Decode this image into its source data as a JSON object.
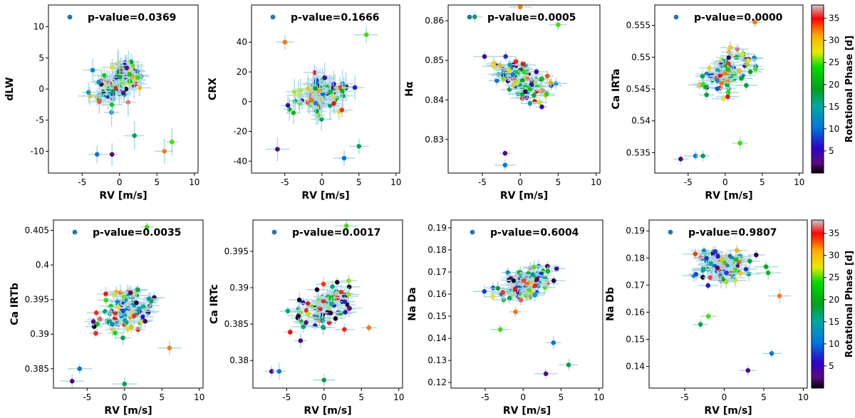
{
  "figure_kind": "scatter_grid",
  "colorbar": {
    "label": "Rotational Phase [d]",
    "ticks": [
      5,
      10,
      15,
      20,
      25,
      30,
      35
    ],
    "range": [
      0,
      38
    ]
  },
  "chart_data": [
    {
      "type": "scatter",
      "id": "dLW",
      "ylabel": "dLW",
      "xlabel": "RV [m/s]",
      "pvalue_text": "p-value=0.0369",
      "xlim": [
        -9.5,
        10.5
      ],
      "ylim": [
        -13.5,
        13.5
      ],
      "xticks": [
        -5,
        0,
        5,
        10
      ],
      "yticks": [
        -10,
        -5,
        0,
        5,
        10
      ],
      "slope": 0.55,
      "intercept": 1.0,
      "noise": 3.6,
      "outliers": [
        [
          -1,
          -10.5
        ],
        [
          -3,
          -10.5
        ],
        [
          2,
          -7.5
        ],
        [
          7,
          -8.5
        ],
        [
          6,
          -10
        ]
      ],
      "n": 95,
      "errx": 1.2,
      "erry": 1.8,
      "seed": 11
    },
    {
      "type": "scatter",
      "id": "CRX",
      "ylabel": "CRX",
      "xlabel": "RV [m/s]",
      "pvalue_text": "p-value=0.1666",
      "xlim": [
        -9.5,
        10.5
      ],
      "ylim": [
        -48,
        65
      ],
      "xticks": [
        -5,
        0,
        5,
        10
      ],
      "yticks": [
        -40,
        -20,
        0,
        20,
        40
      ],
      "slope": 1.0,
      "intercept": 5.0,
      "noise": 15,
      "outliers": [
        [
          -6,
          -32
        ],
        [
          3,
          -38
        ],
        [
          5,
          -30
        ],
        [
          6,
          45
        ],
        [
          -5,
          40
        ]
      ],
      "n": 95,
      "errx": 1.4,
      "erry": 8,
      "seed": 23
    },
    {
      "type": "scatter",
      "id": "Halpha",
      "ylabel": "Hα",
      "xlabel": "RV [m/s]",
      "pvalue_text": "p-value=0.0005",
      "xlim": [
        -9.5,
        10.5
      ],
      "ylim": [
        0.8215,
        0.864
      ],
      "xticks": [
        -5,
        0,
        5,
        10
      ],
      "yticks": [
        0.83,
        0.84,
        0.85,
        0.86
      ],
      "slope": -0.0008,
      "intercept": 0.8455,
      "noise": 0.006,
      "outliers": [
        [
          -2,
          0.8265
        ],
        [
          -2,
          0.8235
        ],
        [
          -6,
          0.861
        ],
        [
          5,
          0.859
        ],
        [
          0,
          0.8635
        ]
      ],
      "n": 95,
      "errx": 1.3,
      "erry": 0.0012,
      "seed": 37
    },
    {
      "type": "scatter",
      "id": "CaIRTa",
      "ylabel": "Ca IRTa",
      "xlabel": "RV [m/s]",
      "pvalue_text": "p-value=0.0000",
      "xlim": [
        -9.5,
        10.5
      ],
      "ylim": [
        0.5318,
        0.5582
      ],
      "xticks": [
        -5,
        0,
        5,
        10
      ],
      "yticks": [
        0.535,
        0.54,
        0.545,
        0.55,
        0.555
      ],
      "slope": 0.0005,
      "intercept": 0.5475,
      "noise": 0.0035,
      "outliers": [
        [
          -6,
          0.534
        ],
        [
          -4,
          0.5345
        ],
        [
          -3,
          0.5345
        ],
        [
          2,
          0.5365
        ],
        [
          4,
          0.5555
        ]
      ],
      "n": 95,
      "errx": 1.3,
      "erry": 0.0008,
      "seed": 41
    },
    {
      "type": "scatter",
      "id": "CaIRTb",
      "ylabel": "Ca IRTb",
      "xlabel": "RV [m/s]",
      "pvalue_text": "p-value=0.0035",
      "xlim": [
        -9.5,
        10.5
      ],
      "ylim": [
        0.3822,
        0.4065
      ],
      "xticks": [
        -5,
        0,
        5,
        10
      ],
      "yticks": [
        0.385,
        0.39,
        0.395,
        0.4,
        0.405
      ],
      "slope": 0.00025,
      "intercept": 0.3935,
      "noise": 0.0035,
      "outliers": [
        [
          -7,
          0.3832
        ],
        [
          -6,
          0.385
        ],
        [
          0,
          0.3828
        ],
        [
          3,
          0.4055
        ],
        [
          6,
          0.388
        ]
      ],
      "n": 95,
      "errx": 1.3,
      "erry": 0.0009,
      "seed": 53
    },
    {
      "type": "scatter",
      "id": "CaIRTc",
      "ylabel": "Ca IRTc",
      "xlabel": "RV [m/s]",
      "pvalue_text": "p-value=0.0017",
      "xlim": [
        -9.5,
        10.5
      ],
      "ylim": [
        0.3762,
        0.3993
      ],
      "xticks": [
        -5,
        0,
        5,
        10
      ],
      "yticks": [
        0.38,
        0.385,
        0.39,
        0.395
      ],
      "slope": 0.0003,
      "intercept": 0.3875,
      "noise": 0.0035,
      "outliers": [
        [
          -7,
          0.3785
        ],
        [
          -6,
          0.3785
        ],
        [
          0,
          0.3773
        ],
        [
          3,
          0.3985
        ],
        [
          6,
          0.3845
        ]
      ],
      "n": 95,
      "errx": 1.3,
      "erry": 0.0009,
      "seed": 67
    },
    {
      "type": "scatter",
      "id": "NaDa",
      "ylabel": "Na Da",
      "xlabel": "RV [m/s]",
      "pvalue_text": "p-value=0.6004",
      "xlim": [
        -9.5,
        10.5
      ],
      "ylim": [
        0.1175,
        0.1935
      ],
      "xticks": [
        -5,
        0,
        5,
        10
      ],
      "yticks": [
        0.12,
        0.13,
        0.14,
        0.15,
        0.16,
        0.17,
        0.18,
        0.19
      ],
      "slope": 0.001,
      "intercept": 0.165,
      "noise": 0.009,
      "outliers": [
        [
          3,
          0.124
        ],
        [
          4,
          0.138
        ],
        [
          6,
          0.128
        ],
        [
          -3,
          0.144
        ],
        [
          -1,
          0.152
        ]
      ],
      "n": 95,
      "errx": 1.3,
      "erry": 0.0025,
      "seed": 79
    },
    {
      "type": "scatter",
      "id": "NaDb",
      "ylabel": "Na Db",
      "xlabel": "RV [m/s]",
      "pvalue_text": "p-value=0.9807",
      "xlim": [
        -9.5,
        10.5
      ],
      "ylim": [
        0.132,
        0.194
      ],
      "xticks": [
        -5,
        0,
        5,
        10
      ],
      "yticks": [
        0.14,
        0.15,
        0.16,
        0.17,
        0.18,
        0.19
      ],
      "slope": 0.0003,
      "intercept": 0.177,
      "noise": 0.007,
      "outliers": [
        [
          3,
          0.1385
        ],
        [
          6,
          0.1448
        ],
        [
          -3,
          0.1555
        ],
        [
          -2,
          0.1585
        ],
        [
          7,
          0.166
        ]
      ],
      "n": 95,
      "errx": 1.3,
      "erry": 0.0022,
      "seed": 97
    }
  ]
}
